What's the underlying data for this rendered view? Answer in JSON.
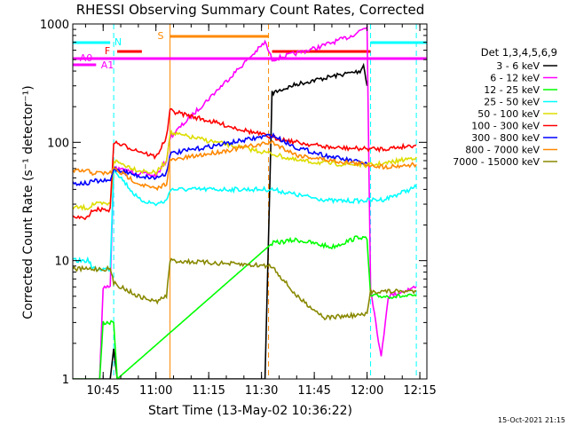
{
  "chart_data": {
    "type": "line",
    "title": "RHESSI Observing Summary Count Rates, Corrected",
    "xlabel": "Start Time (13-May-02 10:36:22)",
    "ylabel": "Corrected Count Rate (s⁻¹ detector⁻¹)",
    "y_scale": "log",
    "ylim": [
      1,
      1000
    ],
    "xlim": [
      "10:36:22",
      "12:17:00"
    ],
    "x_ticks": [
      "10:45",
      "11:00",
      "11:15",
      "11:30",
      "11:45",
      "12:00",
      "12:15"
    ],
    "y_ticks": [
      "1",
      "10",
      "100",
      "1000"
    ],
    "grid": false,
    "legend_position": "right",
    "legend_title": "Det 1,3,4,5,6,9",
    "footer_date": "15-Oct-2021 21:15",
    "series": [
      {
        "name": "3 - 6 keV",
        "color": "#000000",
        "points": [
          [
            "10:36",
            1
          ],
          [
            "10:47",
            1
          ],
          [
            "10:48",
            1.8
          ],
          [
            "10:49",
            1
          ],
          [
            "11:31",
            1
          ],
          [
            "11:33",
            260
          ],
          [
            "11:40",
            310
          ],
          [
            "11:50",
            360
          ],
          [
            "11:58",
            400
          ],
          [
            "11:59",
            450
          ],
          [
            "12:00",
            300
          ]
        ]
      },
      {
        "name": "6 - 12 keV",
        "color": "#ff00ff",
        "points": [
          [
            "10:36",
            1
          ],
          [
            "10:44",
            1
          ],
          [
            "10:45",
            6
          ],
          [
            "10:47",
            6
          ],
          [
            "10:48",
            60
          ],
          [
            "10:55",
            55
          ],
          [
            "11:00",
            52
          ],
          [
            "11:03",
            70
          ],
          [
            "11:04",
            110
          ],
          [
            "11:31",
            700
          ],
          [
            "11:33",
            500
          ],
          [
            "11:45",
            620
          ],
          [
            "11:55",
            780
          ],
          [
            "12:00",
            950
          ],
          [
            "12:01",
            6
          ],
          [
            "12:04",
            1.5
          ],
          [
            "12:06",
            5
          ],
          [
            "12:14",
            6
          ]
        ]
      },
      {
        "name": "12 - 25 keV",
        "color": "#00ff00",
        "points": [
          [
            "10:36",
            1
          ],
          [
            "10:44",
            1
          ],
          [
            "10:45",
            3
          ],
          [
            "10:48",
            3
          ],
          [
            "10:49",
            1
          ],
          [
            "11:33",
            14
          ],
          [
            "11:40",
            15
          ],
          [
            "11:50",
            13
          ],
          [
            "11:58",
            16
          ],
          [
            "12:00",
            15
          ],
          [
            "12:01",
            5
          ],
          [
            "12:14",
            5
          ]
        ]
      },
      {
        "name": "25 - 50 keV",
        "color": "#00ffff",
        "points": [
          [
            "10:36",
            10
          ],
          [
            "10:41",
            10
          ],
          [
            "10:42",
            8.5
          ],
          [
            "10:47",
            8.5
          ],
          [
            "10:48",
            60
          ],
          [
            "10:55",
            33
          ],
          [
            "11:00",
            30
          ],
          [
            "11:03",
            32
          ],
          [
            "11:04",
            40
          ],
          [
            "11:33",
            40
          ],
          [
            "11:40",
            36
          ],
          [
            "11:50",
            32
          ],
          [
            "11:58",
            32
          ],
          [
            "12:05",
            33
          ],
          [
            "12:14",
            42
          ]
        ]
      },
      {
        "name": "50 - 100 keV",
        "color": "#dddd00",
        "points": [
          [
            "10:36",
            28
          ],
          [
            "10:41",
            28
          ],
          [
            "10:42",
            30
          ],
          [
            "10:47",
            30
          ],
          [
            "10:48",
            70
          ],
          [
            "10:55",
            58
          ],
          [
            "11:00",
            55
          ],
          [
            "11:03",
            70
          ],
          [
            "11:04",
            120
          ],
          [
            "11:33",
            80
          ],
          [
            "11:40",
            70
          ],
          [
            "11:50",
            66
          ],
          [
            "12:00",
            64
          ],
          [
            "12:05",
            66
          ],
          [
            "12:14",
            75
          ]
        ]
      },
      {
        "name": "100 - 300 keV",
        "color": "#ff0000",
        "points": [
          [
            "10:36",
            23
          ],
          [
            "10:41",
            23
          ],
          [
            "10:42",
            27
          ],
          [
            "10:47",
            27
          ],
          [
            "10:48",
            100
          ],
          [
            "10:55",
            85
          ],
          [
            "11:00",
            75
          ],
          [
            "11:03",
            110
          ],
          [
            "11:04",
            185
          ],
          [
            "11:33",
            110
          ],
          [
            "11:40",
            100
          ],
          [
            "11:50",
            90
          ],
          [
            "12:00",
            88
          ],
          [
            "12:05",
            88
          ],
          [
            "12:14",
            95
          ]
        ]
      },
      {
        "name": "300 - 800 keV",
        "color": "#0000ff",
        "points": [
          [
            "10:36",
            45
          ],
          [
            "10:41",
            45
          ],
          [
            "10:42",
            47
          ],
          [
            "10:47",
            47
          ],
          [
            "10:48",
            60
          ],
          [
            "10:55",
            52
          ],
          [
            "11:00",
            50
          ],
          [
            "11:03",
            55
          ],
          [
            "11:04",
            80
          ],
          [
            "11:33",
            115
          ],
          [
            "11:40",
            90
          ],
          [
            "11:50",
            75
          ],
          [
            "12:00",
            66
          ]
        ]
      },
      {
        "name": "800 - 7000 keV",
        "color": "#ff8800",
        "points": [
          [
            "10:36",
            57
          ],
          [
            "10:41",
            57
          ],
          [
            "10:42",
            55
          ],
          [
            "10:47",
            55
          ],
          [
            "10:48",
            60
          ],
          [
            "10:55",
            45
          ],
          [
            "11:00",
            40
          ],
          [
            "11:03",
            45
          ],
          [
            "11:04",
            70
          ],
          [
            "11:33",
            100
          ],
          [
            "11:40",
            78
          ],
          [
            "11:50",
            70
          ],
          [
            "12:00",
            65
          ],
          [
            "12:05",
            62
          ],
          [
            "12:14",
            65
          ]
        ]
      },
      {
        "name": "7000 - 15000 keV",
        "color": "#888800",
        "points": [
          [
            "10:36",
            8.5
          ],
          [
            "10:47",
            8.5
          ],
          [
            "10:48",
            6.5
          ],
          [
            "10:55",
            5
          ],
          [
            "11:00",
            4.5
          ],
          [
            "11:03",
            5
          ],
          [
            "11:04",
            10
          ],
          [
            "11:33",
            9
          ],
          [
            "11:40",
            5
          ],
          [
            "11:48",
            3.3
          ],
          [
            "12:00",
            3.5
          ],
          [
            "12:01",
            5.5
          ],
          [
            "12:14",
            5.5
          ]
        ]
      }
    ],
    "annotations": [
      {
        "label": "N",
        "color": "#00ffff"
      },
      {
        "label": "F",
        "color": "#ff0000"
      },
      {
        "label": "S",
        "color": "#ff8800"
      },
      {
        "label": "A0",
        "color": "#ff00ff"
      },
      {
        "label": "A1",
        "color": "#ff00ff"
      }
    ]
  }
}
